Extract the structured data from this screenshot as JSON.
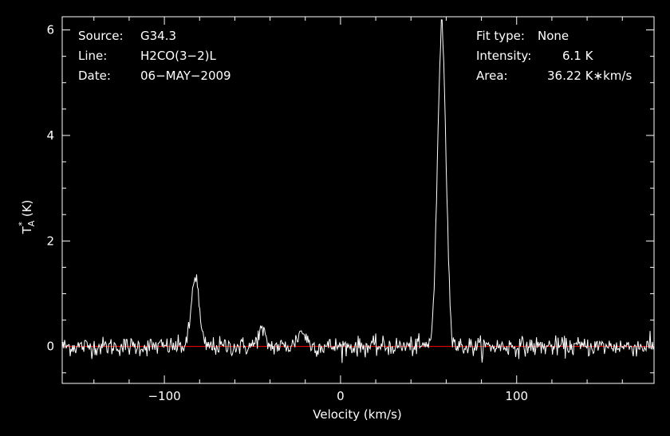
{
  "chart_data": {
    "type": "line",
    "title": "",
    "xlabel": "Velocity (km/s)",
    "ylabel_main": "T",
    "ylabel_super": "*",
    "ylabel_sub": "A",
    "ylabel_unit": "(K)",
    "xlim": [
      -158,
      178
    ],
    "ylim": [
      -0.7,
      6.25
    ],
    "xticks": [
      {
        "value": -100,
        "label": "−100"
      },
      {
        "value": 0,
        "label": "0"
      },
      {
        "value": 100,
        "label": "100"
      }
    ],
    "yticks": [
      {
        "value": 0,
        "label": "0"
      },
      {
        "value": 2,
        "label": "2"
      },
      {
        "value": 4,
        "label": "4"
      },
      {
        "value": 6,
        "label": "6"
      }
    ],
    "grid": false,
    "colors": {
      "spectrum": "#ffffff",
      "baseline": "#ff0000",
      "background": "#000000",
      "axes": "#ffffff"
    },
    "baseline_value": 0,
    "noise_rms": 0.09,
    "series": [
      {
        "components": [
          {
            "type": "gaussian",
            "center": 57.5,
            "amplitude": 6.05,
            "sigma": 2.4
          },
          {
            "type": "gaussian",
            "center": -82.5,
            "amplitude": 1.35,
            "sigma": 2.1
          },
          {
            "type": "gaussian",
            "center": -45,
            "amplitude": 0.3,
            "sigma": 2.0
          },
          {
            "type": "gaussian",
            "center": -22,
            "amplitude": 0.28,
            "sigma": 2.5
          }
        ]
      }
    ]
  },
  "info": {
    "source_label": "Source:",
    "source_value": "G34.3",
    "line_label": "Line:",
    "line_value": "H2CO(3−2)L",
    "date_label": "Date:",
    "date_value": "06−MAY−2009",
    "fit_label": "Fit type:",
    "fit_value": "None",
    "intensity_label": "Intensity:",
    "intensity_value": "6.1 K",
    "area_label": "Area:",
    "area_value": "36.22 K∗km/s"
  }
}
